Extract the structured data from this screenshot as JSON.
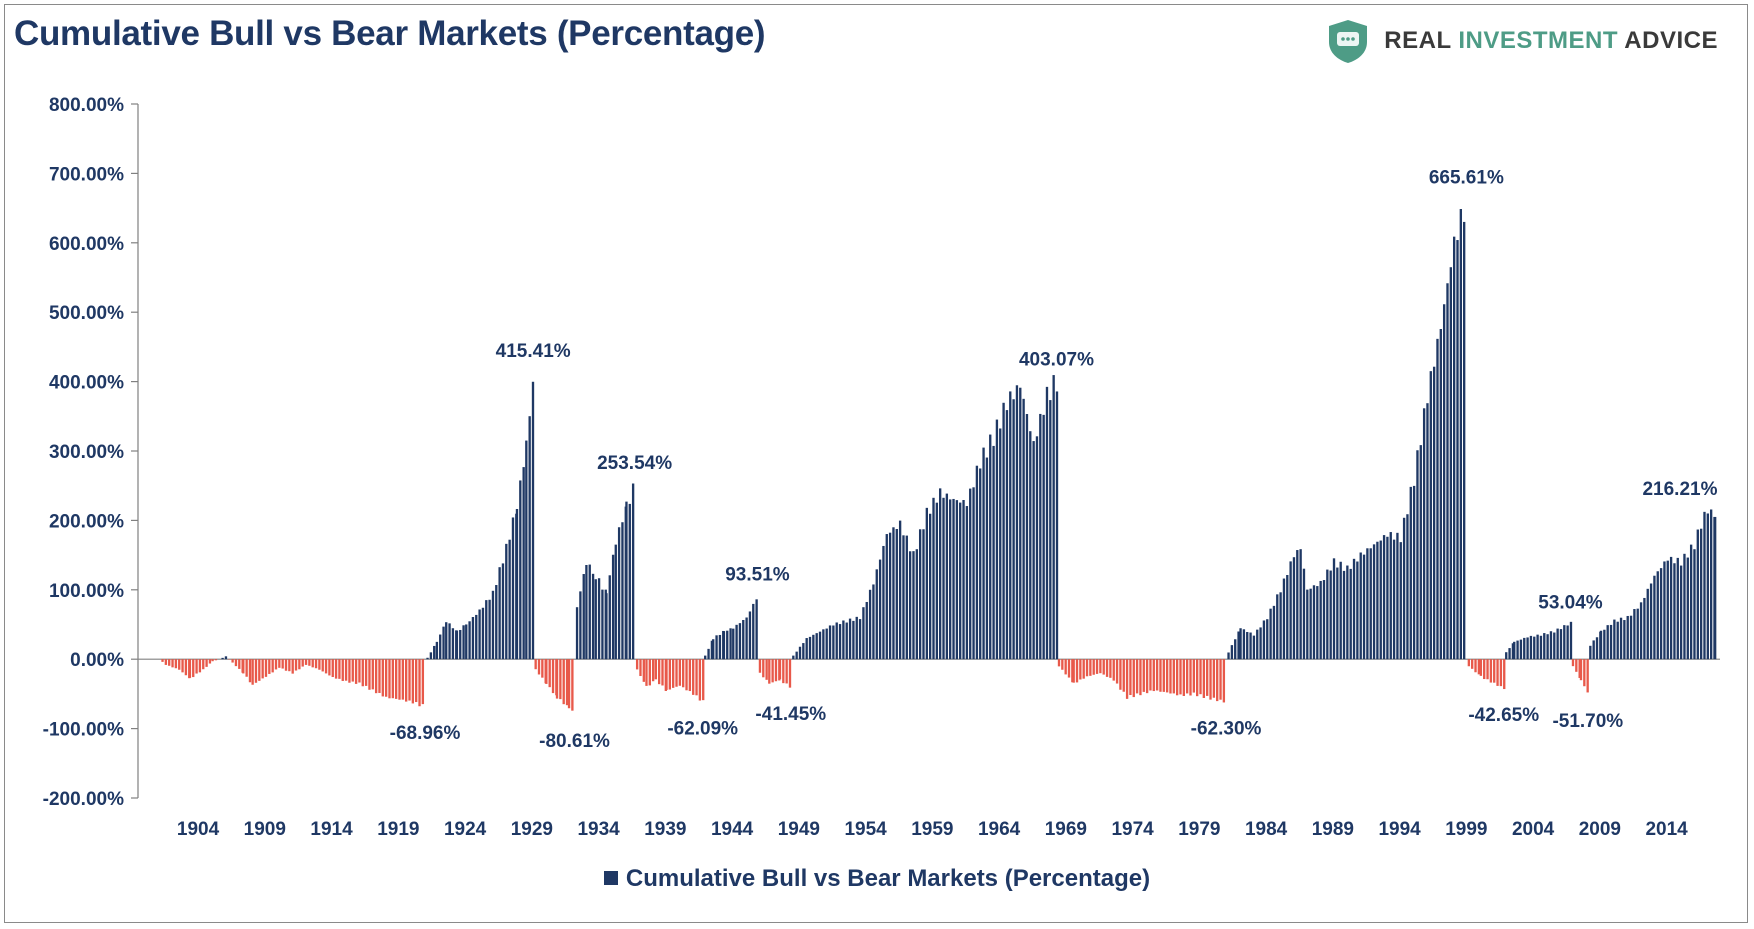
{
  "brand": {
    "name_part1": "REAL ",
    "name_part2": "INVESTMENT",
    "name_part3": " ADVICE",
    "logo_icon": "shield-chat-icon",
    "accent_color": "#4e9c86"
  },
  "chart_data": {
    "type": "bar",
    "title": "Cumulative Bull vs Bear Markets (Percentage)",
    "legend": {
      "label": "Cumulative Bull vs Bear Markets (Percentage)",
      "position": "bottom"
    },
    "colors": {
      "bull": "#1f3864",
      "bear": "#e8594a",
      "text": "#1f3864"
    },
    "ylim": [
      -200,
      800
    ],
    "yticks": [
      800,
      700,
      600,
      500,
      400,
      300,
      200,
      100,
      0,
      -100,
      -200
    ],
    "ytick_labels": [
      "800.00%",
      "700.00%",
      "600.00%",
      "500.00%",
      "400.00%",
      "300.00%",
      "200.00%",
      "100.00%",
      "0.00%",
      "-100.00%",
      "-200.00%"
    ],
    "xlim": [
      1900,
      2018.5
    ],
    "xtick_labels": [
      "1904",
      "1909",
      "1914",
      "1919",
      "1924",
      "1929",
      "1934",
      "1939",
      "1944",
      "1949",
      "1954",
      "1959",
      "1964",
      "1969",
      "1974",
      "1979",
      "1984",
      "1989",
      "1994",
      "1999",
      "2004",
      "2009",
      "2014"
    ],
    "grid": false,
    "series": [
      {
        "name": "Cumulative Bull vs Bear Markets (Percentage)",
        "points": [
          [
            1901.5,
            0
          ],
          [
            1902.0,
            -8
          ],
          [
            1903.0,
            -15
          ],
          [
            1903.8,
            -28
          ],
          [
            1904.8,
            -15
          ],
          [
            1905.5,
            -3
          ],
          [
            1906.0,
            0
          ],
          [
            1906.5,
            4
          ],
          [
            1907.0,
            -5
          ],
          [
            1907.8,
            -20
          ],
          [
            1908.5,
            -37
          ],
          [
            1909.5,
            -25
          ],
          [
            1910.5,
            -12
          ],
          [
            1911.5,
            -20
          ],
          [
            1912.5,
            -8
          ],
          [
            1913.5,
            -15
          ],
          [
            1914.5,
            -26
          ],
          [
            1915.5,
            -32
          ],
          [
            1916.5,
            -35
          ],
          [
            1917.5,
            -45
          ],
          [
            1918.5,
            -55
          ],
          [
            1919.5,
            -58
          ],
          [
            1920.5,
            -62
          ],
          [
            1921.5,
            -68.96
          ],
          [
            1921.6,
            2
          ],
          [
            1922.3,
            25
          ],
          [
            1923.0,
            55
          ],
          [
            1923.8,
            40
          ],
          [
            1924.5,
            50
          ],
          [
            1925.5,
            70
          ],
          [
            1926.5,
            95
          ],
          [
            1927.5,
            160
          ],
          [
            1928.3,
            220
          ],
          [
            1929.0,
            310
          ],
          [
            1929.6,
            415.41
          ],
          [
            1929.7,
            -15
          ],
          [
            1930.5,
            -35
          ],
          [
            1931.3,
            -55
          ],
          [
            1932.2,
            -70
          ],
          [
            1932.7,
            -80.61
          ],
          [
            1932.8,
            75
          ],
          [
            1933.5,
            140
          ],
          [
            1934.2,
            120
          ],
          [
            1935.0,
            95
          ],
          [
            1935.7,
            170
          ],
          [
            1936.5,
            220
          ],
          [
            1937.2,
            253.54
          ],
          [
            1937.3,
            -15
          ],
          [
            1938.0,
            -40
          ],
          [
            1938.7,
            -30
          ],
          [
            1939.5,
            -45
          ],
          [
            1940.5,
            -38
          ],
          [
            1941.5,
            -50
          ],
          [
            1942.3,
            -62.09
          ],
          [
            1942.4,
            5
          ],
          [
            1943.0,
            30
          ],
          [
            1943.8,
            40
          ],
          [
            1944.5,
            45
          ],
          [
            1945.5,
            60
          ],
          [
            1946.4,
            93.51
          ],
          [
            1946.5,
            -20
          ],
          [
            1947.2,
            -35
          ],
          [
            1948.0,
            -30
          ],
          [
            1948.9,
            -41.45
          ],
          [
            1949.0,
            5
          ],
          [
            1950.0,
            30
          ],
          [
            1951.0,
            40
          ],
          [
            1952.0,
            50
          ],
          [
            1953.0,
            55
          ],
          [
            1954.0,
            60
          ],
          [
            1955.0,
            110
          ],
          [
            1956.0,
            180
          ],
          [
            1957.0,
            195
          ],
          [
            1958.0,
            150
          ],
          [
            1959.0,
            210
          ],
          [
            1960.0,
            240
          ],
          [
            1961.0,
            230
          ],
          [
            1962.0,
            225
          ],
          [
            1963.0,
            285
          ],
          [
            1964.0,
            320
          ],
          [
            1965.0,
            370
          ],
          [
            1966.0,
            395
          ],
          [
            1967.0,
            310
          ],
          [
            1968.0,
            380
          ],
          [
            1968.8,
            403.07
          ],
          [
            1968.9,
            -10
          ],
          [
            1970.0,
            -35
          ],
          [
            1971.0,
            -25
          ],
          [
            1972.0,
            -20
          ],
          [
            1973.0,
            -30
          ],
          [
            1974.0,
            -55
          ],
          [
            1975.0,
            -50
          ],
          [
            1976.0,
            -45
          ],
          [
            1977.0,
            -48
          ],
          [
            1978.0,
            -52
          ],
          [
            1979.0,
            -50
          ],
          [
            1980.0,
            -55
          ],
          [
            1981.5,
            -62.3
          ],
          [
            1981.6,
            10
          ],
          [
            1982.5,
            45
          ],
          [
            1983.5,
            35
          ],
          [
            1984.5,
            60
          ],
          [
            1985.5,
            100
          ],
          [
            1986.5,
            150
          ],
          [
            1987.0,
            160
          ],
          [
            1987.5,
            100
          ],
          [
            1988.5,
            110
          ],
          [
            1989.5,
            140
          ],
          [
            1990.5,
            130
          ],
          [
            1991.5,
            150
          ],
          [
            1992.5,
            165
          ],
          [
            1993.5,
            180
          ],
          [
            1994.5,
            175
          ],
          [
            1995.5,
            260
          ],
          [
            1996.5,
            380
          ],
          [
            1997.5,
            480
          ],
          [
            1998.5,
            600
          ],
          [
            1999.5,
            665.61
          ],
          [
            1999.6,
            -10
          ],
          [
            2000.5,
            -25
          ],
          [
            2001.5,
            -35
          ],
          [
            2002.3,
            -42.65
          ],
          [
            2002.4,
            10
          ],
          [
            2003.0,
            25
          ],
          [
            2004.0,
            32
          ],
          [
            2005.0,
            35
          ],
          [
            2006.0,
            40
          ],
          [
            2007.3,
            53.04
          ],
          [
            2007.4,
            -10
          ],
          [
            2008.0,
            -30
          ],
          [
            2008.6,
            -51.7
          ],
          [
            2008.7,
            20
          ],
          [
            2009.5,
            40
          ],
          [
            2010.5,
            55
          ],
          [
            2011.5,
            60
          ],
          [
            2012.5,
            80
          ],
          [
            2013.5,
            120
          ],
          [
            2014.5,
            145
          ],
          [
            2015.5,
            140
          ],
          [
            2016.5,
            165
          ],
          [
            2017.0,
            195
          ],
          [
            2017.5,
            216.21
          ],
          [
            2018.0,
            205
          ]
        ]
      }
    ],
    "annotations": [
      {
        "x": 1929.6,
        "y": 415.41,
        "text": "415.41%"
      },
      {
        "x": 1937.2,
        "y": 253.54,
        "text": "253.54%"
      },
      {
        "x": 1946.4,
        "y": 93.51,
        "text": "93.51%"
      },
      {
        "x": 1968.8,
        "y": 403.07,
        "text": "403.07%"
      },
      {
        "x": 1999.5,
        "y": 665.61,
        "text": "665.61%"
      },
      {
        "x": 2007.3,
        "y": 53.04,
        "text": "53.04%"
      },
      {
        "x": 2017.5,
        "y": 216.21,
        "text": "216.21%"
      },
      {
        "x": 1921.5,
        "y": -68.96,
        "text": "-68.96%"
      },
      {
        "x": 1932.7,
        "y": -80.61,
        "text": "-80.61%"
      },
      {
        "x": 1942.3,
        "y": -62.09,
        "text": "-62.09%"
      },
      {
        "x": 1948.9,
        "y": -41.45,
        "text": "-41.45%"
      },
      {
        "x": 1981.5,
        "y": -62.3,
        "text": "-62.30%"
      },
      {
        "x": 2002.3,
        "y": -42.65,
        "text": "-42.65%"
      },
      {
        "x": 2008.6,
        "y": -51.7,
        "text": "-51.70%"
      }
    ]
  }
}
